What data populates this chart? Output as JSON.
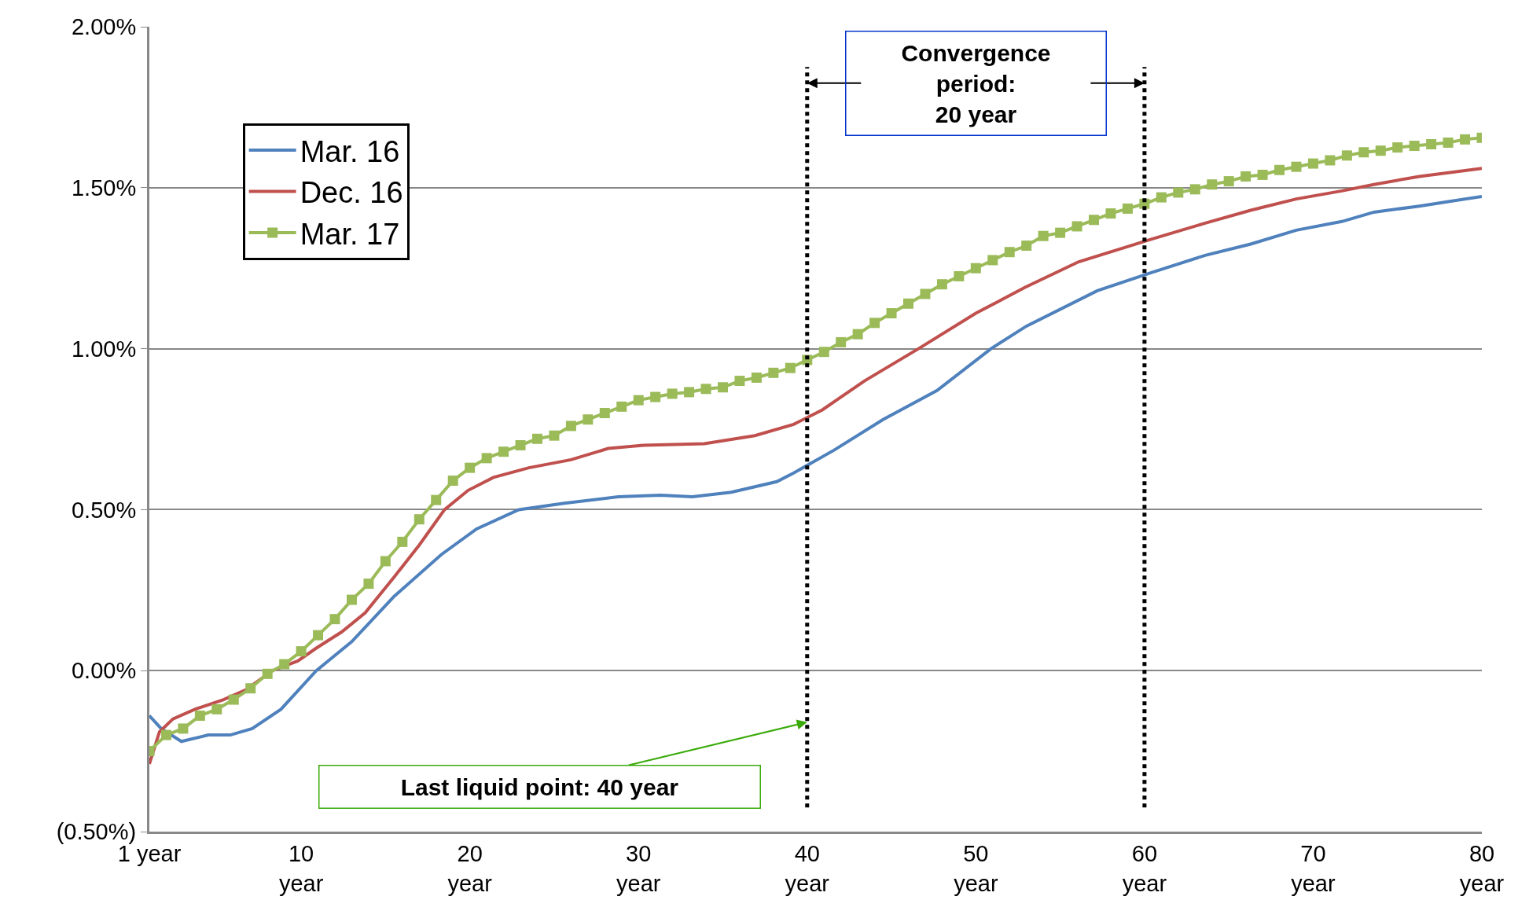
{
  "chart_data": {
    "type": "line",
    "xlim": [
      1,
      80
    ],
    "xticks": [
      {
        "value": 1,
        "label": "1 year"
      },
      {
        "value": 10,
        "label": "10\nyear"
      },
      {
        "value": 20,
        "label": "20\nyear"
      },
      {
        "value": 30,
        "label": "30\nyear"
      },
      {
        "value": 40,
        "label": "40\nyear"
      },
      {
        "value": 50,
        "label": "50\nyear"
      },
      {
        "value": 60,
        "label": "60\nyear"
      },
      {
        "value": 70,
        "label": "70\nyear"
      },
      {
        "value": 80,
        "label": "80\nyear"
      }
    ],
    "ylim": [
      -0.5,
      2.0
    ],
    "yticks": [
      {
        "value": -0.5,
        "label": "(0.50%)"
      },
      {
        "value": 0,
        "label": "0.00%"
      },
      {
        "value": 0.5,
        "label": "0.50%"
      },
      {
        "value": 1.0,
        "label": "1.00%"
      },
      {
        "value": 1.5,
        "label": "1.50%"
      },
      {
        "value": 2.0,
        "label": "2.00%"
      }
    ],
    "grid": "y",
    "legend": "top left",
    "series": [
      {
        "name": "Mar. 16",
        "color": "#4f81bd",
        "marker": "none",
        "x": [
          1,
          1.7,
          2.9,
          4.5,
          5.8,
          7.1,
          8.8,
          10.9,
          13,
          15.5,
          18.3,
          20.4,
          22.9,
          25.6,
          28.8,
          31.3,
          33.2,
          35.5,
          38.2,
          39.2,
          41.6,
          44.5,
          47.7,
          50.9,
          53,
          57.2,
          60.4,
          63.6,
          66.3,
          69,
          71.7,
          73.6,
          76.3,
          80
        ],
        "values": [
          -0.14,
          -0.18,
          -0.22,
          -0.2,
          -0.2,
          -0.18,
          -0.12,
          0.0,
          0.09,
          0.23,
          0.36,
          0.44,
          0.5,
          0.52,
          0.54,
          0.545,
          0.54,
          0.554,
          0.587,
          0.614,
          0.685,
          0.78,
          0.87,
          1.0,
          1.07,
          1.18,
          1.236,
          1.29,
          1.325,
          1.368,
          1.395,
          1.424,
          1.443,
          1.473
        ]
      },
      {
        "name": "Dec. 16",
        "color": "#c0504d",
        "marker": "none",
        "x": [
          1,
          1.6,
          2.4,
          3.7,
          5.4,
          6.7,
          8.3,
          9.8,
          10.9,
          12.4,
          13.8,
          15.5,
          17,
          18.5,
          19.9,
          21.4,
          23.5,
          26,
          28.2,
          30.3,
          33.9,
          36.9,
          39.2,
          40.9,
          43.4,
          46.6,
          50,
          52.9,
          56.1,
          60.4,
          63.6,
          66.3,
          69,
          71.7,
          73.6,
          76.3,
          80
        ],
        "values": [
          -0.29,
          -0.19,
          -0.15,
          -0.12,
          -0.09,
          -0.06,
          0.0,
          0.03,
          0.07,
          0.12,
          0.18,
          0.29,
          0.39,
          0.5,
          0.56,
          0.6,
          0.63,
          0.655,
          0.69,
          0.7,
          0.705,
          0.73,
          0.765,
          0.81,
          0.9,
          1.0,
          1.11,
          1.19,
          1.27,
          1.34,
          1.39,
          1.43,
          1.465,
          1.49,
          1.51,
          1.535,
          1.56
        ]
      },
      {
        "name": "Mar. 17",
        "color": "#9bbb59",
        "marker": "square",
        "x": [
          1,
          2,
          3,
          4,
          5,
          6,
          7,
          8,
          9,
          10,
          11,
          12,
          13,
          14,
          15,
          16,
          17,
          18,
          19,
          20,
          21,
          22,
          23,
          24,
          25,
          26,
          27,
          28,
          29,
          30,
          31,
          32,
          33,
          34,
          35,
          36,
          37,
          38,
          39,
          40,
          41,
          42,
          43,
          44,
          45,
          46,
          47,
          48,
          49,
          50,
          51,
          52,
          53,
          54,
          55,
          56,
          57,
          58,
          59,
          60,
          61,
          62,
          63,
          64,
          65,
          66,
          67,
          68,
          69,
          70,
          71,
          72,
          73,
          74,
          75,
          76,
          77,
          78,
          79,
          80
        ],
        "values": [
          -0.25,
          -0.2,
          -0.18,
          -0.14,
          -0.12,
          -0.09,
          -0.055,
          -0.01,
          0.02,
          0.06,
          0.11,
          0.16,
          0.22,
          0.27,
          0.34,
          0.4,
          0.47,
          0.53,
          0.59,
          0.63,
          0.66,
          0.68,
          0.7,
          0.72,
          0.73,
          0.76,
          0.78,
          0.8,
          0.82,
          0.84,
          0.85,
          0.86,
          0.865,
          0.875,
          0.88,
          0.9,
          0.91,
          0.925,
          0.94,
          0.965,
          0.99,
          1.02,
          1.045,
          1.08,
          1.11,
          1.14,
          1.17,
          1.2,
          1.225,
          1.25,
          1.275,
          1.3,
          1.32,
          1.35,
          1.36,
          1.38,
          1.4,
          1.42,
          1.435,
          1.45,
          1.47,
          1.485,
          1.495,
          1.51,
          1.52,
          1.535,
          1.54,
          1.555,
          1.565,
          1.575,
          1.585,
          1.6,
          1.61,
          1.615,
          1.625,
          1.63,
          1.635,
          1.64,
          1.65,
          1.655
        ]
      }
    ],
    "ref_lines": [
      {
        "axis": "x",
        "value": 40,
        "color": "#000000",
        "line_style": "dotted"
      },
      {
        "axis": "x",
        "value": 60,
        "color": "#000000",
        "line_style": "dotted"
      }
    ],
    "annotations": [
      "Convergence\nperiod:\n20 year",
      {
        "text": "Last liquid point: 40 year",
        "x": 40,
        "y": -0.16
      }
    ]
  }
}
